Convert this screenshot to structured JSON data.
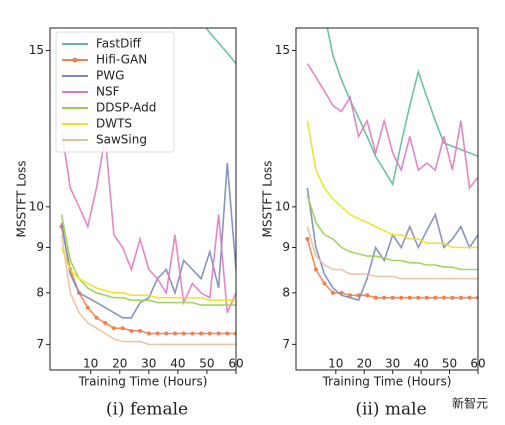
{
  "chart_data": [
    {
      "type": "line",
      "caption": "(i) female",
      "xlabel": "Training Time (Hours)",
      "ylabel": "MSSTFT Loss",
      "yscale": "log",
      "xlim": [
        -4,
        60
      ],
      "ylim": [
        6.55,
        15.9
      ],
      "xticks": [
        10,
        20,
        30,
        40,
        50,
        60
      ],
      "yticks": [
        7,
        8,
        9,
        10,
        15
      ],
      "legend": "upper left",
      "x": [
        0,
        3,
        6,
        9,
        12,
        15,
        18,
        21,
        24,
        27,
        30,
        33,
        36,
        39,
        42,
        45,
        48,
        51,
        54,
        57,
        60
      ],
      "series": [
        {
          "name": "FastDiff",
          "color": "#5fb9a0",
          "values": [
            null,
            null,
            null,
            null,
            null,
            null,
            null,
            null,
            null,
            null,
            null,
            null,
            null,
            null,
            null,
            null,
            16.2,
            15.7,
            15.3,
            14.9,
            14.5
          ]
        },
        {
          "name": "Hifi-GAN",
          "color": "#f08050",
          "marker": "o",
          "values": [
            9.5,
            8.5,
            8.0,
            7.7,
            7.5,
            7.4,
            7.3,
            7.3,
            7.25,
            7.25,
            7.2,
            7.2,
            7.2,
            7.2,
            7.2,
            7.2,
            7.2,
            7.2,
            7.2,
            7.2,
            7.2
          ]
        },
        {
          "name": "PWG",
          "color": "#7b8ab8",
          "values": [
            9.6,
            8.4,
            8.0,
            7.9,
            7.8,
            7.7,
            7.6,
            7.5,
            7.5,
            7.8,
            7.9,
            8.3,
            8.5,
            8.0,
            8.7,
            8.5,
            8.3,
            8.9,
            8.1,
            11.2,
            8.5
          ]
        },
        {
          "name": "NSF",
          "color": "#e07ac0",
          "values": [
            12.2,
            10.5,
            10.0,
            9.5,
            10.5,
            12.0,
            9.3,
            9.0,
            8.5,
            9.2,
            8.5,
            8.3,
            8.0,
            9.3,
            7.8,
            8.2,
            8.0,
            7.9,
            9.8,
            7.6,
            8.0
          ]
        },
        {
          "name": "DDSP-Add",
          "color": "#9ad050",
          "values": [
            9.8,
            8.7,
            8.3,
            8.1,
            8.0,
            7.95,
            7.9,
            7.9,
            7.85,
            7.85,
            7.85,
            7.8,
            7.8,
            7.8,
            7.8,
            7.8,
            7.75,
            7.75,
            7.75,
            7.75,
            7.75
          ]
        },
        {
          "name": "DWTS",
          "color": "#f0e020",
          "values": [
            9.0,
            8.5,
            8.3,
            8.2,
            8.1,
            8.05,
            8.0,
            8.0,
            7.95,
            7.95,
            7.95,
            7.9,
            7.9,
            7.9,
            7.9,
            7.9,
            7.9,
            7.85,
            7.85,
            7.85,
            7.85
          ]
        },
        {
          "name": "SawSing",
          "color": "#e8c0a0",
          "values": [
            9.3,
            8.0,
            7.6,
            7.4,
            7.3,
            7.2,
            7.1,
            7.05,
            7.05,
            7.05,
            7.0,
            7.0,
            7.0,
            7.0,
            7.0,
            7.0,
            7.0,
            7.0,
            7.0,
            7.0,
            7.0
          ]
        }
      ]
    },
    {
      "type": "line",
      "caption": "(ii) male",
      "xlabel": "Training Time (Hours)",
      "ylabel": "MSSTFT Loss",
      "yscale": "log",
      "xlim": [
        -4,
        60
      ],
      "ylim": [
        6.55,
        15.9
      ],
      "xticks": [
        10,
        20,
        30,
        40,
        50,
        60
      ],
      "yticks": [
        7,
        8,
        9,
        10,
        15
      ],
      "watermark": "新智元",
      "x": [
        0,
        3,
        6,
        9,
        12,
        15,
        18,
        21,
        24,
        27,
        30,
        33,
        36,
        39,
        42,
        45,
        48,
        51,
        54,
        57,
        60
      ],
      "series": [
        {
          "name": "FastDiff",
          "color": "#5fb9a0",
          "values": [
            null,
            null,
            16.5,
            14.8,
            13.9,
            13.2,
            12.6,
            12.0,
            11.4,
            11.0,
            10.6,
            11.8,
            13.0,
            14.2,
            13.3,
            12.5,
            11.8,
            11.7,
            11.6,
            11.5,
            11.4
          ]
        },
        {
          "name": "Hifi-GAN",
          "color": "#f08050",
          "marker": "o",
          "values": [
            9.2,
            8.5,
            8.2,
            8.0,
            8.0,
            7.95,
            7.95,
            7.95,
            7.9,
            7.9,
            7.9,
            7.9,
            7.9,
            7.9,
            7.9,
            7.9,
            7.9,
            7.9,
            7.9,
            7.9,
            7.9
          ]
        },
        {
          "name": "PWG",
          "color": "#7b8ab8",
          "values": [
            10.5,
            9.0,
            8.4,
            8.1,
            7.95,
            7.9,
            7.85,
            8.3,
            9.0,
            8.7,
            9.3,
            9.0,
            9.5,
            9.0,
            9.4,
            9.8,
            9.0,
            9.2,
            9.5,
            9.0,
            9.3
          ]
        },
        {
          "name": "NSF",
          "color": "#e07ac0",
          "values": [
            14.5,
            14.0,
            13.5,
            13.0,
            12.8,
            13.3,
            12.0,
            12.5,
            11.5,
            12.5,
            11.5,
            11.0,
            12.0,
            11.0,
            11.2,
            11.0,
            12.0,
            11.0,
            12.5,
            10.5,
            10.8
          ]
        },
        {
          "name": "DDSP-Add",
          "color": "#9ad050",
          "values": [
            10.3,
            9.6,
            9.3,
            9.2,
            9.0,
            8.9,
            8.85,
            8.8,
            8.8,
            8.75,
            8.7,
            8.7,
            8.65,
            8.65,
            8.6,
            8.6,
            8.55,
            8.55,
            8.5,
            8.5,
            8.5
          ]
        },
        {
          "name": "DWTS",
          "color": "#f0e020",
          "values": [
            12.5,
            11.0,
            10.5,
            10.2,
            10.0,
            9.8,
            9.7,
            9.6,
            9.5,
            9.4,
            9.3,
            9.3,
            9.2,
            9.2,
            9.1,
            9.1,
            9.1,
            9.0,
            9.0,
            9.0,
            9.0
          ]
        },
        {
          "name": "SawSing",
          "color": "#e8c0a0",
          "values": [
            9.5,
            8.8,
            8.6,
            8.5,
            8.5,
            8.4,
            8.4,
            8.4,
            8.35,
            8.35,
            8.35,
            8.3,
            8.3,
            8.3,
            8.3,
            8.3,
            8.3,
            8.3,
            8.3,
            8.3,
            8.3
          ]
        }
      ]
    }
  ]
}
